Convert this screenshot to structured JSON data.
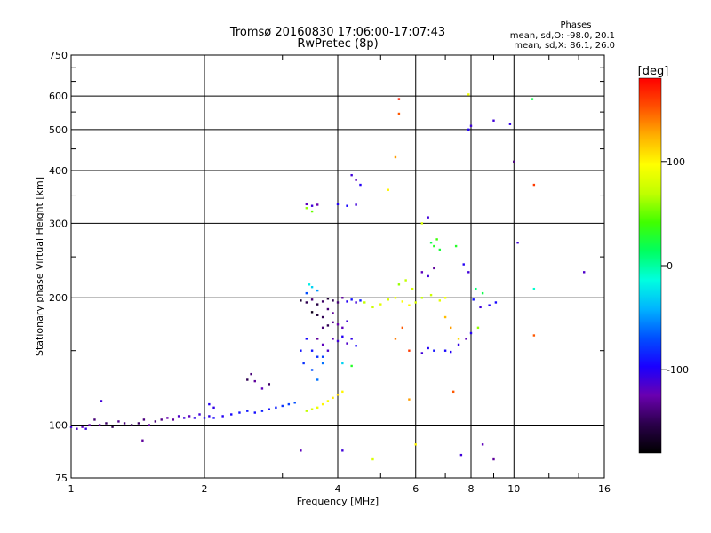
{
  "chart_data": {
    "type": "scatter",
    "title": "Tromsø 20160830 17:06:00-17:07:43",
    "subtitle": "RwPretec (8p)",
    "xlabel": "Frequency [MHz]",
    "ylabel": "Stationary phase Virtual Height [km]",
    "x_scale": "log",
    "y_scale": "log",
    "xlim": [
      1,
      16
    ],
    "ylim": [
      75,
      750
    ],
    "x_ticks": [
      "1",
      "2",
      "4",
      "6",
      "8",
      "10",
      "16"
    ],
    "x_tick_values": [
      1,
      2,
      4,
      6,
      8,
      10,
      16
    ],
    "y_ticks": [
      "75",
      "100",
      "200",
      "300",
      "400",
      "500",
      "600",
      "750"
    ],
    "y_tick_values": [
      75,
      100,
      200,
      300,
      400,
      500,
      600,
      750
    ],
    "grid": true,
    "stats": {
      "heading": "Phases",
      "line1": "mean, sd,O: -98.0, 20.1",
      "line2": "mean, sd,X: 86.1, 26.0"
    },
    "colorbar": {
      "label": "[deg]",
      "tick_labels": [
        "100",
        "0",
        "-100"
      ],
      "tick_values": [
        100,
        0,
        -100
      ],
      "range": [
        -180,
        180
      ],
      "colors": [
        "#000000",
        "#2a004a",
        "#6a00b0",
        "#1a00ff",
        "#0050ff",
        "#00b4ff",
        "#00ffe0",
        "#00ff60",
        "#40ff00",
        "#c0ff00",
        "#ffff00",
        "#ffb000",
        "#ff5000",
        "#ff0000"
      ]
    },
    "series": [
      {
        "points": [
          [
            1.0,
            99,
            -110
          ],
          [
            1.03,
            98,
            -115
          ],
          [
            1.06,
            99,
            -120
          ],
          [
            1.08,
            98,
            -108
          ],
          [
            1.1,
            100,
            -125
          ],
          [
            1.13,
            103,
            -140
          ],
          [
            1.16,
            100,
            -130
          ],
          [
            1.2,
            101,
            -145
          ],
          [
            1.24,
            99,
            -150
          ],
          [
            1.28,
            102,
            -135
          ],
          [
            1.32,
            101,
            -140
          ],
          [
            1.37,
            100,
            -150
          ],
          [
            1.42,
            101,
            -145
          ],
          [
            1.46,
            103,
            -138
          ],
          [
            1.5,
            100,
            -130
          ],
          [
            1.55,
            102,
            -140
          ],
          [
            1.6,
            103,
            -135
          ],
          [
            1.65,
            104,
            -125
          ],
          [
            1.7,
            103,
            -130
          ],
          [
            1.75,
            105,
            -115
          ],
          [
            1.8,
            104,
            -110
          ],
          [
            1.85,
            105,
            -120
          ],
          [
            1.9,
            104,
            -105
          ],
          [
            1.95,
            106,
            -110
          ],
          [
            2.0,
            104,
            -100
          ],
          [
            2.05,
            105,
            -105
          ],
          [
            2.1,
            104,
            -95
          ],
          [
            2.2,
            105,
            -100
          ],
          [
            2.3,
            106,
            -95
          ],
          [
            2.4,
            107,
            -90
          ],
          [
            2.5,
            108,
            -88
          ],
          [
            2.6,
            107,
            -92
          ],
          [
            2.7,
            108,
            -85
          ],
          [
            2.8,
            109,
            -90
          ],
          [
            2.9,
            110,
            -85
          ],
          [
            3.0,
            111,
            -80
          ],
          [
            3.1,
            112,
            -75
          ],
          [
            3.2,
            113,
            -70
          ],
          [
            1.45,
            92,
            -130
          ],
          [
            1.17,
            114,
            -110
          ],
          [
            2.05,
            112,
            -100
          ],
          [
            2.1,
            110,
            -105
          ],
          [
            2.5,
            128,
            -150
          ],
          [
            2.55,
            132,
            -140
          ],
          [
            2.6,
            127,
            -130
          ],
          [
            2.7,
            122,
            -120
          ],
          [
            2.8,
            125,
            -145
          ],
          [
            3.3,
            150,
            -90
          ],
          [
            3.35,
            140,
            -80
          ],
          [
            3.4,
            160,
            -95
          ],
          [
            3.5,
            135,
            -70
          ],
          [
            3.6,
            128,
            -60
          ],
          [
            3.7,
            145,
            -75
          ]
        ]
      },
      {
        "points": [
          [
            3.3,
            197,
            -160
          ],
          [
            3.4,
            195,
            -150
          ],
          [
            3.5,
            198,
            -140
          ],
          [
            3.6,
            193,
            -155
          ],
          [
            3.7,
            196,
            -145
          ],
          [
            3.8,
            199,
            -160
          ],
          [
            3.9,
            197,
            -150
          ],
          [
            4.0,
            195,
            -140
          ],
          [
            4.1,
            200,
            -130
          ],
          [
            4.2,
            196,
            -100
          ],
          [
            4.3,
            198,
            -90
          ],
          [
            4.4,
            195,
            -110
          ],
          [
            4.5,
            197,
            -85
          ],
          [
            3.5,
            185,
            -170
          ],
          [
            3.6,
            182,
            -160
          ],
          [
            3.7,
            180,
            -150
          ],
          [
            3.8,
            188,
            -140
          ],
          [
            3.9,
            184,
            -130
          ],
          [
            3.4,
            205,
            -70
          ],
          [
            3.45,
            215,
            -20
          ],
          [
            3.5,
            212,
            -30
          ],
          [
            3.6,
            208,
            -50
          ],
          [
            3.9,
            160,
            -120
          ],
          [
            4.0,
            158,
            -110
          ],
          [
            4.1,
            162,
            -100
          ],
          [
            4.2,
            156,
            -115
          ],
          [
            4.3,
            160,
            -105
          ],
          [
            4.4,
            154,
            -95
          ],
          [
            3.6,
            160,
            -130
          ],
          [
            3.7,
            155,
            -120
          ],
          [
            3.8,
            150,
            -115
          ],
          [
            3.7,
            170,
            -140
          ],
          [
            3.8,
            172,
            -150
          ],
          [
            3.9,
            175,
            -135
          ],
          [
            4.0,
            173,
            -125
          ],
          [
            4.1,
            170,
            -120
          ],
          [
            4.2,
            176,
            -110
          ],
          [
            3.5,
            150,
            -90
          ],
          [
            3.6,
            145,
            -80
          ],
          [
            3.7,
            140,
            -60
          ],
          [
            4.1,
            140,
            -30
          ],
          [
            4.3,
            138,
            30
          ],
          [
            3.4,
            333,
            -120
          ],
          [
            3.5,
            330,
            -110
          ],
          [
            3.6,
            332,
            -125
          ],
          [
            4.0,
            333,
            -100
          ],
          [
            4.2,
            330,
            -95
          ],
          [
            4.4,
            332,
            -110
          ],
          [
            4.5,
            370,
            -100
          ],
          [
            4.4,
            380,
            -120
          ],
          [
            4.3,
            390,
            -110
          ],
          [
            3.4,
            326,
            60
          ],
          [
            3.5,
            320,
            50
          ],
          [
            3.4,
            108,
            70
          ],
          [
            3.5,
            109,
            80
          ],
          [
            3.6,
            110,
            90
          ],
          [
            3.7,
            112,
            100
          ],
          [
            3.8,
            114,
            95
          ],
          [
            3.9,
            116,
            105
          ],
          [
            4.0,
            118,
            110
          ],
          [
            4.1,
            120,
            100
          ],
          [
            3.3,
            87,
            -120
          ],
          [
            4.1,
            87,
            -110
          ],
          [
            4.8,
            83,
            80
          ]
        ]
      },
      {
        "points": [
          [
            4.6,
            195,
            70
          ],
          [
            4.8,
            190,
            75
          ],
          [
            5.0,
            193,
            85
          ],
          [
            5.2,
            198,
            80
          ],
          [
            5.4,
            200,
            90
          ],
          [
            5.6,
            196,
            95
          ],
          [
            5.8,
            192,
            100
          ],
          [
            6.0,
            195,
            80
          ],
          [
            6.2,
            200,
            70
          ],
          [
            6.5,
            203,
            75
          ],
          [
            6.8,
            197,
            85
          ],
          [
            7.0,
            200,
            90
          ],
          [
            5.5,
            215,
            60
          ],
          [
            5.7,
            220,
            70
          ],
          [
            5.9,
            210,
            80
          ],
          [
            6.5,
            270,
            20
          ],
          [
            6.6,
            265,
            30
          ],
          [
            6.7,
            275,
            40
          ],
          [
            6.8,
            260,
            25
          ],
          [
            7.4,
            265,
            30
          ],
          [
            7.0,
            180,
            120
          ],
          [
            7.2,
            170,
            130
          ],
          [
            7.5,
            160,
            110
          ],
          [
            5.6,
            170,
            150
          ],
          [
            5.4,
            160,
            140
          ],
          [
            5.8,
            150,
            160
          ],
          [
            6.2,
            148,
            -110
          ],
          [
            6.4,
            152,
            -100
          ],
          [
            6.6,
            150,
            -90
          ],
          [
            7.0,
            150,
            -95
          ],
          [
            7.2,
            149,
            -100
          ],
          [
            7.5,
            155,
            -105
          ],
          [
            6.2,
            230,
            -120
          ],
          [
            6.4,
            225,
            -110
          ],
          [
            6.6,
            235,
            -130
          ],
          [
            7.7,
            240,
            -100
          ],
          [
            7.9,
            230,
            -110
          ],
          [
            8.1,
            198,
            -90
          ],
          [
            8.4,
            190,
            -110
          ],
          [
            8.8,
            192,
            -100
          ],
          [
            9.1,
            195,
            -95
          ],
          [
            8.2,
            210,
            10
          ],
          [
            8.5,
            205,
            20
          ],
          [
            7.8,
            160,
            -120
          ],
          [
            8.0,
            165,
            -100
          ],
          [
            8.3,
            170,
            60
          ],
          [
            5.5,
            590,
            170
          ],
          [
            5.5,
            545,
            150
          ],
          [
            5.4,
            430,
            130
          ],
          [
            5.2,
            360,
            100
          ],
          [
            6.2,
            300,
            80
          ],
          [
            6.4,
            310,
            -110
          ],
          [
            7.9,
            605,
            90
          ],
          [
            7.9,
            500,
            -100
          ],
          [
            8.0,
            510,
            -110
          ],
          [
            9.0,
            525,
            -110
          ],
          [
            9.8,
            515,
            -105
          ],
          [
            11.0,
            590,
            20
          ],
          [
            11.1,
            370,
            160
          ],
          [
            11.1,
            210,
            -10
          ],
          [
            11.1,
            163,
            150
          ],
          [
            10.0,
            420,
            -140
          ],
          [
            10.2,
            270,
            -110
          ],
          [
            14.4,
            230,
            -115
          ],
          [
            8.5,
            90,
            -120
          ],
          [
            9.0,
            83,
            -130
          ],
          [
            7.6,
            85,
            -110
          ],
          [
            7.3,
            120,
            150
          ],
          [
            5.8,
            115,
            130
          ],
          [
            6.0,
            90,
            100
          ]
        ]
      }
    ]
  }
}
